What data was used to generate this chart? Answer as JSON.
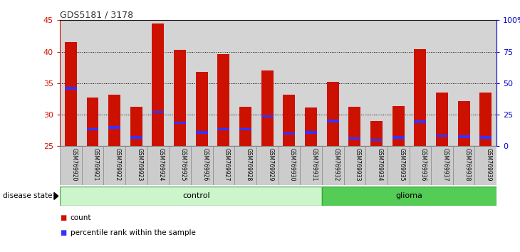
{
  "title": "GDS5181 / 3178",
  "samples": [
    "GSM769920",
    "GSM769921",
    "GSM769922",
    "GSM769923",
    "GSM769924",
    "GSM769925",
    "GSM769926",
    "GSM769927",
    "GSM769928",
    "GSM769929",
    "GSM769930",
    "GSM769931",
    "GSM769932",
    "GSM769933",
    "GSM769934",
    "GSM769935",
    "GSM769936",
    "GSM769937",
    "GSM769938",
    "GSM769939"
  ],
  "count_values": [
    41.5,
    32.7,
    33.2,
    31.3,
    44.5,
    40.3,
    36.8,
    39.6,
    31.3,
    37.0,
    33.2,
    31.1,
    35.2,
    31.2,
    29.0,
    31.4,
    40.4,
    33.5,
    32.1,
    33.5
  ],
  "percentile_values": [
    34.0,
    27.5,
    27.8,
    26.2,
    30.2,
    28.5,
    27.0,
    27.5,
    27.5,
    29.5,
    26.8,
    27.0,
    28.8,
    26.0,
    25.8,
    26.2,
    28.7,
    26.5,
    26.3,
    26.2
  ],
  "control_count": 12,
  "glioma_count": 8,
  "ylim_left": [
    25,
    45
  ],
  "ylim_right": [
    0,
    100
  ],
  "yticks_left": [
    25,
    30,
    35,
    40,
    45
  ],
  "yticks_right": [
    0,
    25,
    50,
    75,
    100
  ],
  "bar_color": "#cc1100",
  "percentile_color": "#3333ff",
  "axis_bg": "#d4d4d4",
  "control_bg": "#ccf5cc",
  "glioma_bg": "#55cc55",
  "left_axis_color": "#cc1100",
  "right_axis_color": "#0000cc",
  "title_color": "#333333"
}
